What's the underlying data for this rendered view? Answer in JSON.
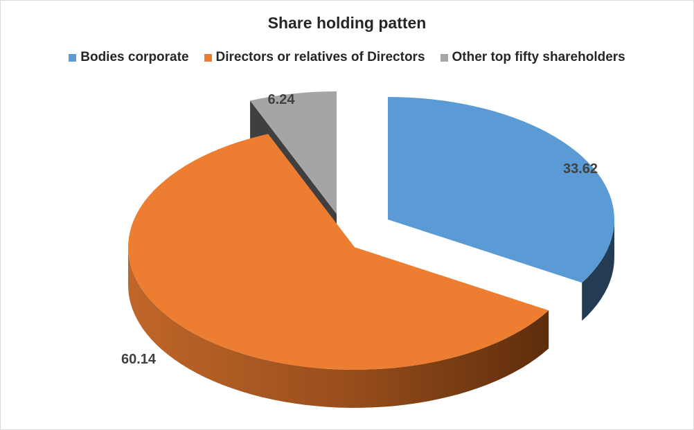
{
  "chart_data": {
    "type": "pie",
    "variant": "3d-exploded",
    "title": "Share holding patten",
    "legend_position": "top",
    "series": [
      {
        "name": "Bodies corporate",
        "value": 33.62,
        "label": "33.62",
        "color": "#5b9bd5",
        "side_color": "#233b53"
      },
      {
        "name": "Directors or relatives of Directors",
        "value": 60.14,
        "label": "60.14",
        "color": "#ed7d31",
        "side_color": "#6b3510"
      },
      {
        "name": "Other top fifty shareholders",
        "value": 6.24,
        "label": "6.24",
        "color": "#a5a5a5",
        "side_color": "#3f3f3f"
      }
    ]
  }
}
